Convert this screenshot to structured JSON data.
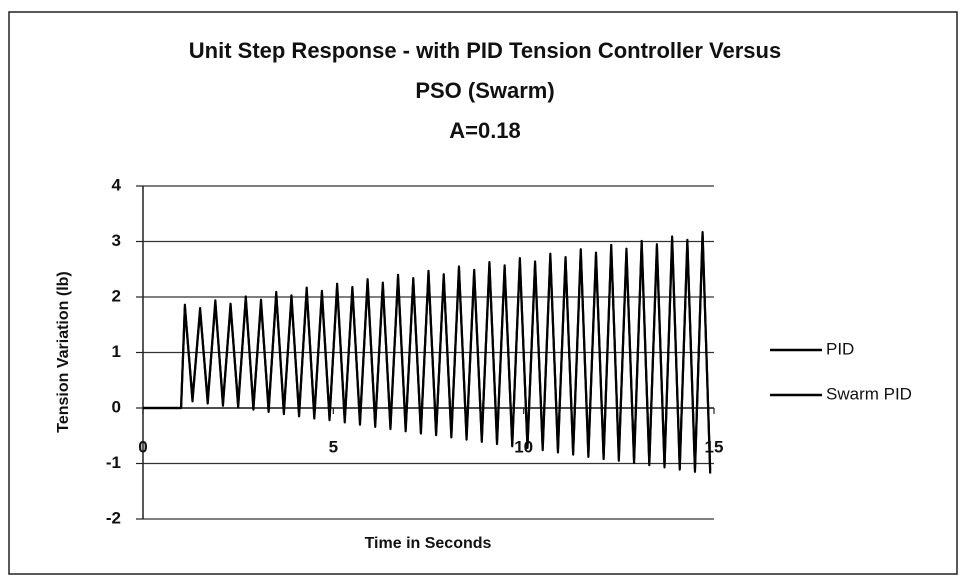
{
  "chart_data": {
    "type": "line",
    "title": [
      "Unit Step Response - with PID Tension Controller  Versus",
      "PSO (Swarm)",
      "A=0.18"
    ],
    "x_label": "Time in Seconds",
    "y_label": "Tension Variation (lb)",
    "xlim": [
      0,
      15
    ],
    "xticks": [
      0,
      5,
      10,
      15
    ],
    "ylim": [
      -2,
      4
    ],
    "yticks": [
      -2,
      -1,
      0,
      1,
      2,
      3,
      4
    ],
    "grid": true,
    "legend": "right",
    "x": [
      0,
      1,
      1.1,
      1.3,
      1.5,
      1.7,
      1.9,
      2.1,
      2.3,
      2.5,
      2.7,
      2.9,
      3.1,
      3.3,
      3.5,
      3.7,
      3.9,
      4.1,
      4.3,
      4.5,
      4.7,
      4.9,
      5.1,
      5.3,
      5.5,
      5.7,
      5.9,
      6.1,
      6.3,
      6.5,
      6.7,
      6.9,
      7.1,
      7.3,
      7.5,
      7.7,
      7.9,
      8.1,
      8.3,
      8.5,
      8.7,
      8.9,
      9.1,
      9.3,
      9.5,
      9.7,
      9.9,
      10.1,
      10.3,
      10.5,
      10.7,
      10.9,
      11.1,
      11.3,
      11.5,
      11.7,
      11.9,
      12.1,
      12.3,
      12.5,
      12.7,
      12.9,
      13.1,
      13.3,
      13.5,
      13.7,
      13.9,
      14.1,
      14.3,
      14.5,
      14.7,
      14.9
    ],
    "series": [
      {
        "name": "PID",
        "color": "#000000",
        "values": [
          0,
          0,
          1.86,
          0.12,
          1.8,
          0.08,
          1.94,
          0.04,
          1.88,
          0.01,
          2.01,
          -0.03,
          1.95,
          -0.07,
          2.09,
          -0.11,
          2.03,
          -0.15,
          2.17,
          -0.19,
          2.11,
          -0.22,
          2.24,
          -0.26,
          2.18,
          -0.3,
          2.32,
          -0.34,
          2.26,
          -0.38,
          2.4,
          -0.42,
          2.34,
          -0.46,
          2.47,
          -0.49,
          2.41,
          -0.53,
          2.55,
          -0.57,
          2.49,
          -0.61,
          2.63,
          -0.65,
          2.57,
          -0.69,
          2.7,
          -0.72,
          2.64,
          -0.76,
          2.78,
          -0.8,
          2.72,
          -0.84,
          2.86,
          -0.88,
          2.8,
          -0.92,
          2.94,
          -0.95,
          2.87,
          -0.99,
          3.01,
          -1.03,
          2.95,
          -1.07,
          3.09,
          -1.11,
          3.03,
          -1.15,
          3.17,
          -1.18
        ]
      },
      {
        "name": "Swarm PID",
        "color": "#000000",
        "values": [
          0,
          0,
          1.8,
          0.18,
          1.74,
          0.14,
          1.88,
          0.1,
          1.82,
          0.07,
          1.95,
          0.03,
          1.89,
          -0.01,
          2.03,
          -0.05,
          1.97,
          -0.09,
          2.11,
          -0.13,
          2.05,
          -0.16,
          2.18,
          -0.2,
          2.12,
          -0.24,
          2.26,
          -0.28,
          2.2,
          -0.32,
          2.34,
          -0.36,
          2.28,
          -0.4,
          2.41,
          -0.43,
          2.35,
          -0.47,
          2.49,
          -0.51,
          2.43,
          -0.55,
          2.57,
          -0.59,
          2.51,
          -0.63,
          2.64,
          -0.66,
          2.58,
          -0.7,
          2.72,
          -0.74,
          2.66,
          -0.78,
          2.8,
          -0.82,
          2.74,
          -0.86,
          2.88,
          -0.89,
          2.81,
          -0.93,
          2.95,
          -0.97,
          2.89,
          -1.01,
          3.03,
          -1.05,
          2.97,
          -1.09,
          3.11,
          -1.12
        ]
      }
    ]
  }
}
